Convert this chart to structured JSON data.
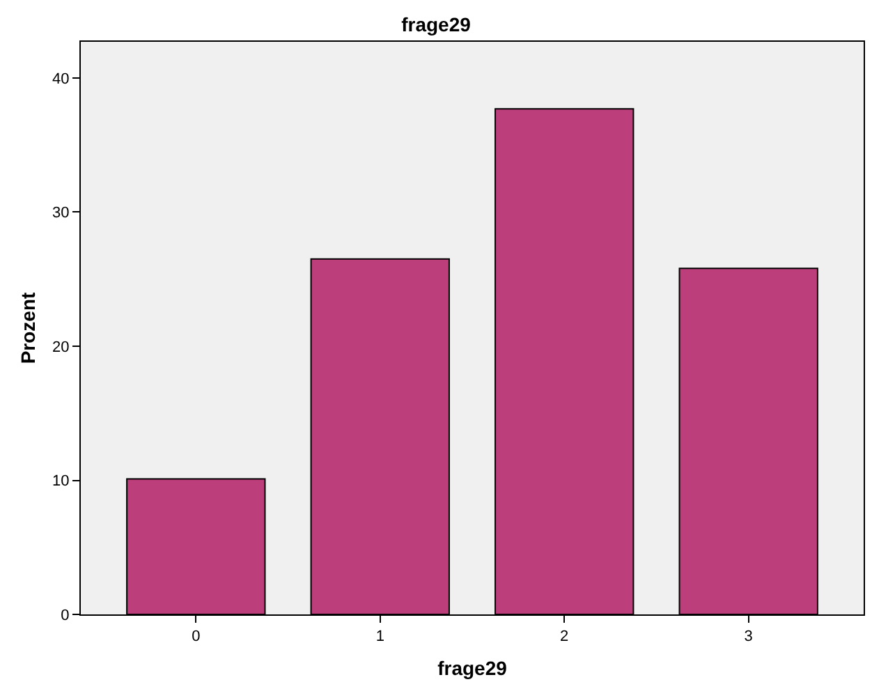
{
  "chart_data": {
    "type": "bar",
    "title": "frage29",
    "xlabel": "frage29",
    "ylabel": "Prozent",
    "categories": [
      "0",
      "1",
      "2",
      "3"
    ],
    "values": [
      10.1,
      26.5,
      37.7,
      25.8
    ],
    "color": "#bc3f7c",
    "ylim": [
      0,
      42.7
    ],
    "yticks": [
      0,
      10,
      20,
      30,
      40
    ],
    "grid": false,
    "legend": false
  }
}
